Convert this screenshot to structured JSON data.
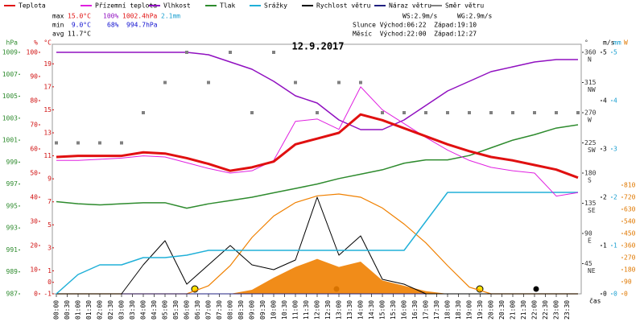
{
  "chart_data": {
    "type": "line",
    "title": "12.9.2017",
    "x": [
      0,
      1,
      2,
      3,
      4,
      5,
      6,
      7,
      8,
      9,
      10,
      11,
      12,
      13,
      14,
      15,
      16,
      17,
      18,
      19,
      20,
      21,
      22,
      23,
      24
    ],
    "xticks": [
      {
        "value": 0,
        "label": "00:00"
      },
      {
        "value": 0.5,
        "label": "00:30"
      },
      {
        "value": 1,
        "label": "01:00"
      },
      {
        "value": 1.5,
        "label": "01:30"
      },
      {
        "value": 2,
        "label": "02:00"
      },
      {
        "value": 2.5,
        "label": "02:30"
      },
      {
        "value": 3,
        "label": "03:00"
      },
      {
        "value": 3.5,
        "label": "03:30"
      },
      {
        "value": 4,
        "label": "04:00"
      },
      {
        "value": 4.5,
        "label": "04:30"
      },
      {
        "value": 5,
        "label": "05:00"
      },
      {
        "value": 5.5,
        "label": "05:30"
      },
      {
        "value": 6,
        "label": "06:00"
      },
      {
        "value": 6.5,
        "label": "06:30"
      },
      {
        "value": 7,
        "label": "07:00"
      },
      {
        "value": 7.5,
        "label": "07:30"
      },
      {
        "value": 8,
        "label": "08:00"
      },
      {
        "value": 8.5,
        "label": "08:30"
      },
      {
        "value": 9,
        "label": "09:00"
      },
      {
        "value": 9.5,
        "label": "09:30"
      },
      {
        "value": 10,
        "label": "10:00"
      },
      {
        "value": 10.5,
        "label": "10:30"
      },
      {
        "value": 11,
        "label": "11:00"
      },
      {
        "value": 11.5,
        "label": "11:30"
      },
      {
        "value": 12,
        "label": "12:00"
      },
      {
        "value": 12.5,
        "label": "12:30"
      },
      {
        "value": 13,
        "label": "13:00"
      },
      {
        "value": 13.5,
        "label": "13:30"
      },
      {
        "value": 14,
        "label": "14:00"
      },
      {
        "value": 14.5,
        "label": "14:30"
      },
      {
        "value": 15,
        "label": "15:00"
      },
      {
        "value": 15.5,
        "label": "15:30"
      },
      {
        "value": 16,
        "label": "16:00"
      },
      {
        "value": 16.5,
        "label": "16:30"
      },
      {
        "value": 17,
        "label": "17:00"
      },
      {
        "value": 17.5,
        "label": "17:30"
      },
      {
        "value": 18,
        "label": "18:00"
      },
      {
        "value": 18.5,
        "label": "18:30"
      },
      {
        "value": 19,
        "label": "19:00"
      },
      {
        "value": 19.5,
        "label": "19:30"
      },
      {
        "value": 20,
        "label": "20:00"
      },
      {
        "value": 20.5,
        "label": "20:30"
      },
      {
        "value": 21,
        "label": "21:00"
      },
      {
        "value": 21.5,
        "label": "21:30"
      },
      {
        "value": 22,
        "label": "22:00"
      },
      {
        "value": 22.5,
        "label": "22:30"
      },
      {
        "value": 23,
        "label": "23:00"
      },
      {
        "value": 23.5,
        "label": "23:30"
      }
    ],
    "xlim": [
      0,
      24
    ],
    "xlabel": "čas",
    "axes": {
      "p": {
        "unit": "hPa",
        "color": "#2e8b2e",
        "lim": [
          987,
          1009
        ],
        "ticks": [
          987,
          989,
          991,
          993,
          995,
          997,
          999,
          1001,
          1003,
          1005,
          1007,
          1009
        ],
        "side": "left",
        "pos": 22
      },
      "h": {
        "unit": "%",
        "color": "#d01010",
        "lim": [
          0,
          100
        ],
        "ticks": [
          0,
          10,
          20,
          30,
          40,
          50,
          60,
          70,
          80,
          90,
          100
        ],
        "side": "left",
        "pos": 47
      },
      "t": {
        "unit": "°C",
        "color": "#d01010",
        "lim": [
          -1,
          20
        ],
        "ticks": [
          -1,
          0,
          1,
          3,
          5,
          7,
          9,
          11,
          13,
          15,
          17,
          19
        ],
        "side": "left",
        "pos": 64
      },
      "dir": {
        "unit": "°",
        "color": "#333333",
        "lim": [
          0,
          360
        ],
        "ticks": [
          45,
          90,
          135,
          180,
          225,
          270,
          315,
          360
        ],
        "compass": [
          "NE",
          "E",
          "SE",
          "S",
          "SW",
          "W",
          "NW",
          "N"
        ],
        "side": "right",
        "pos": 726
      },
      "ms": {
        "unit": "m/s",
        "color": "#000000",
        "lim": [
          0,
          5
        ],
        "ticks": [
          0,
          1,
          2,
          3,
          4,
          5
        ],
        "side": "right",
        "pos": 749
      },
      "mm": {
        "unit": "mm",
        "color": "#1a9fd0",
        "lim": [
          0,
          5
        ],
        "ticks": [
          0,
          1,
          2,
          3,
          4,
          5
        ],
        "side": "right",
        "pos": 762
      },
      "w": {
        "unit": "W",
        "color": "#e07800",
        "lim": [
          0,
          1800
        ],
        "ticks": [
          0,
          90,
          180,
          270,
          360,
          450,
          540,
          630,
          720,
          810
        ],
        "side": "right",
        "pos": 775
      }
    },
    "series": [
      {
        "name": "Teplota",
        "color": "#e01010",
        "axis": "t",
        "width": 3,
        "values": [
          10.9,
          11,
          11,
          11,
          11.3,
          11.2,
          10.8,
          10.3,
          9.7,
          10,
          10.5,
          12,
          12.5,
          13,
          14.6,
          14.1,
          13.4,
          12.7,
          12,
          11.4,
          10.9,
          10.6,
          10.2,
          9.8,
          9.1
        ]
      },
      {
        "name": "Přízemní teplota",
        "color": "#e020e0",
        "axis": "t",
        "width": 1,
        "values": [
          10.6,
          10.6,
          10.7,
          10.8,
          11,
          10.9,
          10.4,
          9.9,
          9.5,
          9.7,
          10.6,
          14,
          14.2,
          13.3,
          17,
          15,
          13.8,
          12.6,
          11.5,
          10.6,
          10,
          9.7,
          9.5,
          7.5,
          7.8
        ]
      },
      {
        "name": "Vlhkost",
        "color": "#9010c0",
        "axis": "h",
        "width": 1.5,
        "values": [
          100,
          100,
          100,
          100,
          100,
          100,
          100,
          99,
          96,
          93,
          88,
          82,
          79,
          72,
          68,
          68,
          72,
          78,
          84,
          88,
          92,
          94,
          96,
          97,
          97
        ]
      },
      {
        "name": "Tlak",
        "color": "#2e8b2e",
        "axis": "p",
        "width": 1.5,
        "values": [
          995.4,
          995.2,
          995.1,
          995.2,
          995.3,
          995.3,
          994.8,
          995.2,
          995.5,
          995.8,
          996.2,
          996.6,
          997,
          997.5,
          997.9,
          998.3,
          998.9,
          999.2,
          999.2,
          999.6,
          1000.3,
          1001,
          1001.5,
          1002.1,
          1002.4
        ]
      },
      {
        "name": "Srážky",
        "color": "#20b0d8",
        "axis": "mm",
        "width": 1.5,
        "values": [
          0,
          0.4,
          0.6,
          0.6,
          0.75,
          0.75,
          0.8,
          0.9,
          0.9,
          0.9,
          0.9,
          0.9,
          0.9,
          0.9,
          0.9,
          0.9,
          0.9,
          1.5,
          2.1,
          2.1,
          2.1,
          2.1,
          2.1,
          2.1,
          2.1
        ]
      },
      {
        "name": "Rychlost větru",
        "color": "#000000",
        "axis": "ms",
        "width": 1,
        "values": [
          0,
          0,
          0,
          0,
          0.6,
          1.1,
          0.2,
          0.6,
          1,
          0.6,
          0.5,
          0.7,
          2,
          0.8,
          1.2,
          0.3,
          0.2,
          0,
          0,
          0,
          0,
          0,
          0,
          0,
          0
        ]
      },
      {
        "name": "Náraz větru",
        "color": "#202080",
        "axis": "ms",
        "width": 1,
        "values": [
          0,
          0,
          0,
          0,
          0,
          0,
          0,
          0,
          0,
          0,
          0,
          0,
          0,
          0,
          0,
          0,
          0,
          0,
          0,
          0,
          0,
          0,
          0,
          0,
          0
        ]
      },
      {
        "name": "Směr větru",
        "color": "#808080",
        "axis": "dir",
        "style": "squares",
        "values": [
          225,
          225,
          225,
          225,
          270,
          315,
          360,
          315,
          360,
          270,
          360,
          315,
          270,
          315,
          315,
          270,
          270,
          270,
          270,
          270,
          270,
          270,
          270,
          270,
          270
        ]
      }
    ],
    "solar": {
      "color": "#f08000",
      "axis": "w",
      "curve": [
        0,
        0,
        0,
        0,
        0,
        0,
        0,
        60,
        210,
        420,
        580,
        680,
        730,
        744,
        720,
        640,
        520,
        380,
        210,
        50,
        0,
        0,
        0,
        0,
        0
      ],
      "values": [
        0,
        0,
        0,
        0,
        0,
        0,
        0,
        0,
        0,
        30,
        120,
        200,
        260,
        200,
        240,
        100,
        60,
        20,
        0,
        0,
        0,
        0,
        0,
        0,
        0
      ]
    },
    "stats": {
      "max": {
        "label": "max",
        "t": "15.0°C",
        "h": "100%",
        "p": "1002.4hPa",
        "mm": "2.1mm"
      },
      "min": {
        "label": "min",
        "t": " 9.0°C",
        "h": "68%",
        "p": "994.7hPa"
      },
      "avg": {
        "label": "avg",
        "t": "11.7°C"
      }
    },
    "info": {
      "ws": "WS:2.9m/s",
      "wg": "WG:2.9m/s",
      "sun": "Slunce Východ:06:22  Západ:19:10",
      "moon": "Měsíc  Východ:22:00  Západ:12:27"
    }
  }
}
